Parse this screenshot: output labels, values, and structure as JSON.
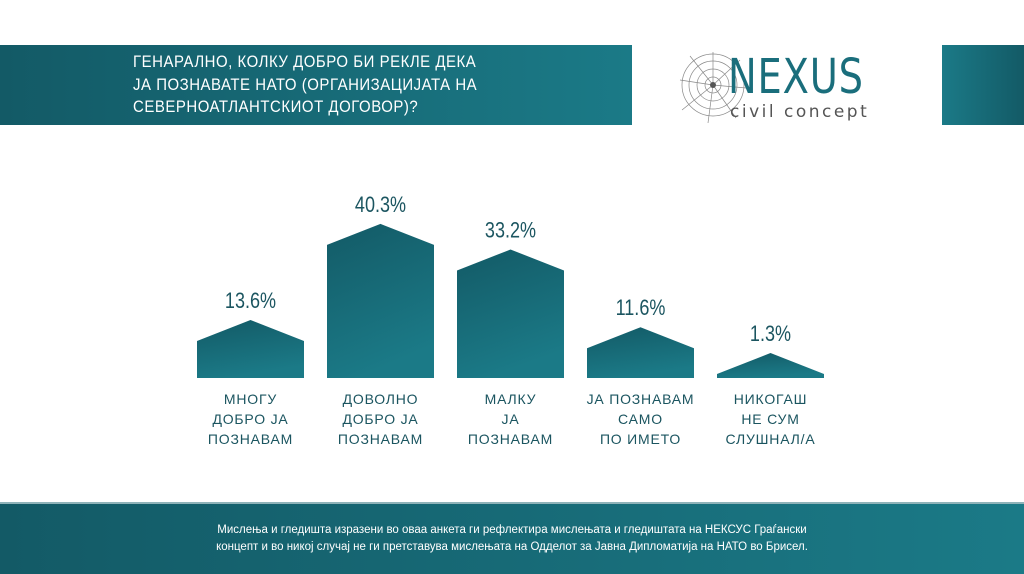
{
  "header": {
    "title_lines": [
      "ГЕНАРАЛНО, КОЛКУ ДОБРО БИ РЕКЛЕ ДЕКА",
      "ЈА ПОЗНАВАТЕ НАТО (ОРГАНИЗАЦИЈАТА НА",
      "СЕВЕРНОАТЛАНТСКИОТ ДОГОВОР)?"
    ]
  },
  "logo": {
    "name": "NEXUS",
    "subtitle": "civil concept"
  },
  "chart_data": {
    "type": "bar",
    "title": "ГЕНАРАЛНО, КОЛКУ ДОБРО БИ РЕКЛЕ ДЕКА ЈА ПОЗНАВАТЕ НАТО (ОРГАНИЗАЦИЈАТА НА СЕВЕРНОАТЛАНТСКИОТ ДОГОВОР)?",
    "categories": [
      [
        "МНОГУ",
        "ДОБРО ЈА",
        "ПОЗНАВАМ"
      ],
      [
        "ДОВОЛНО",
        "ДОБРО ЈА",
        "ПОЗНАВАМ"
      ],
      [
        "МАЛКУ",
        "ЈА",
        "ПОЗНАВАМ"
      ],
      [
        "ЈА ПОЗНАВАМ",
        "САМО",
        "ПО ИМЕТО"
      ],
      [
        "НИКОГАШ",
        "НЕ СУМ",
        "СЛУШНАЛ/А"
      ]
    ],
    "values": [
      13.6,
      40.3,
      33.2,
      11.6,
      1.3
    ],
    "value_labels": [
      "13.6%",
      "40.3%",
      "33.2%",
      "11.6%",
      "1.3%"
    ],
    "unit": "%",
    "colors": {
      "bar_top": "#135a66",
      "bar_bottom": "#1b7a87",
      "label": "#1b5560"
    }
  },
  "footer": {
    "lines": [
      "Мислења и гледишта изразени во оваа анкета ги рефлектира мислењата и гледиштата на НЕКСУС Граѓански",
      "концепт и во никој случај не ги претставува мислењата на Одделот за Јавна Дипломатија на НАТО во Брисел."
    ]
  }
}
